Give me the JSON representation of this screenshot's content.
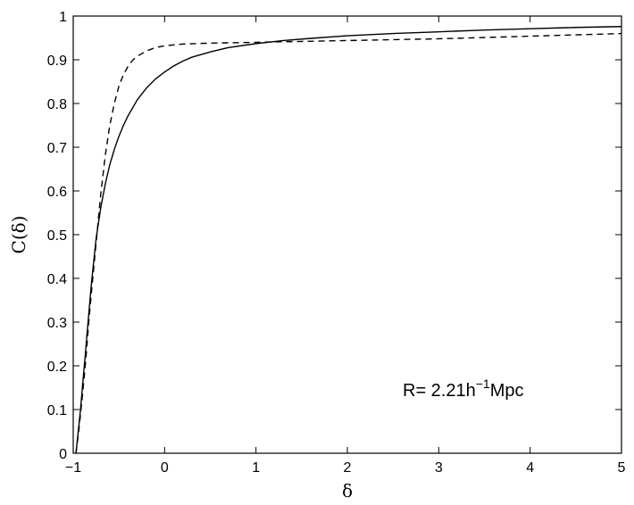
{
  "chart_data": {
    "type": "line",
    "title": "",
    "xlabel": "δ",
    "ylabel": "C(δ)",
    "xlim": [
      -1,
      5
    ],
    "ylim": [
      0,
      1
    ],
    "xticks": [
      -1,
      0,
      1,
      2,
      3,
      4,
      5
    ],
    "yticks": [
      0,
      0.1,
      0.2,
      0.3,
      0.4,
      0.5,
      0.6,
      0.7,
      0.8,
      0.9,
      1
    ],
    "xtick_labels": [
      "−1",
      "0",
      "1",
      "2",
      "3",
      "4",
      "5"
    ],
    "ytick_labels": [
      "0",
      "0.1",
      "0.2",
      "0.3",
      "0.4",
      "0.5",
      "0.6",
      "0.7",
      "0.8",
      "0.9",
      "1"
    ],
    "grid": false,
    "annotation": {
      "prefix": "R= 2.21h",
      "superscript": "−1",
      "suffix": "Mpc"
    },
    "series": [
      {
        "style": "solid",
        "color": "#000000",
        "x": [
          -0.97,
          -0.95,
          -0.92,
          -0.9,
          -0.87,
          -0.85,
          -0.8,
          -0.75,
          -0.7,
          -0.65,
          -0.6,
          -0.55,
          -0.5,
          -0.45,
          -0.4,
          -0.3,
          -0.2,
          -0.1,
          0,
          0.1,
          0.2,
          0.3,
          0.5,
          0.7,
          1,
          1.3,
          1.6,
          2,
          2.5,
          3,
          3.5,
          4,
          4.5,
          5
        ],
        "y": [
          0.0,
          0.04,
          0.1,
          0.15,
          0.22,
          0.27,
          0.39,
          0.49,
          0.56,
          0.615,
          0.66,
          0.695,
          0.725,
          0.75,
          0.772,
          0.808,
          0.835,
          0.856,
          0.872,
          0.886,
          0.897,
          0.906,
          0.918,
          0.928,
          0.937,
          0.944,
          0.949,
          0.955,
          0.96,
          0.964,
          0.968,
          0.971,
          0.974,
          0.976
        ]
      },
      {
        "style": "dashed",
        "color": "#000000",
        "x": [
          -0.97,
          -0.94,
          -0.9,
          -0.86,
          -0.83,
          -0.8,
          -0.75,
          -0.7,
          -0.65,
          -0.6,
          -0.55,
          -0.5,
          -0.45,
          -0.4,
          -0.35,
          -0.3,
          -0.2,
          -0.1,
          0,
          0.2,
          0.5,
          1,
          1.5,
          2,
          2.5,
          3,
          3.5,
          4,
          4.5,
          5
        ],
        "y": [
          0.0,
          0.05,
          0.13,
          0.22,
          0.3,
          0.37,
          0.48,
          0.59,
          0.68,
          0.75,
          0.8,
          0.84,
          0.866,
          0.885,
          0.899,
          0.908,
          0.92,
          0.928,
          0.932,
          0.936,
          0.938,
          0.94,
          0.942,
          0.944,
          0.946,
          0.948,
          0.951,
          0.954,
          0.957,
          0.96
        ]
      }
    ]
  }
}
